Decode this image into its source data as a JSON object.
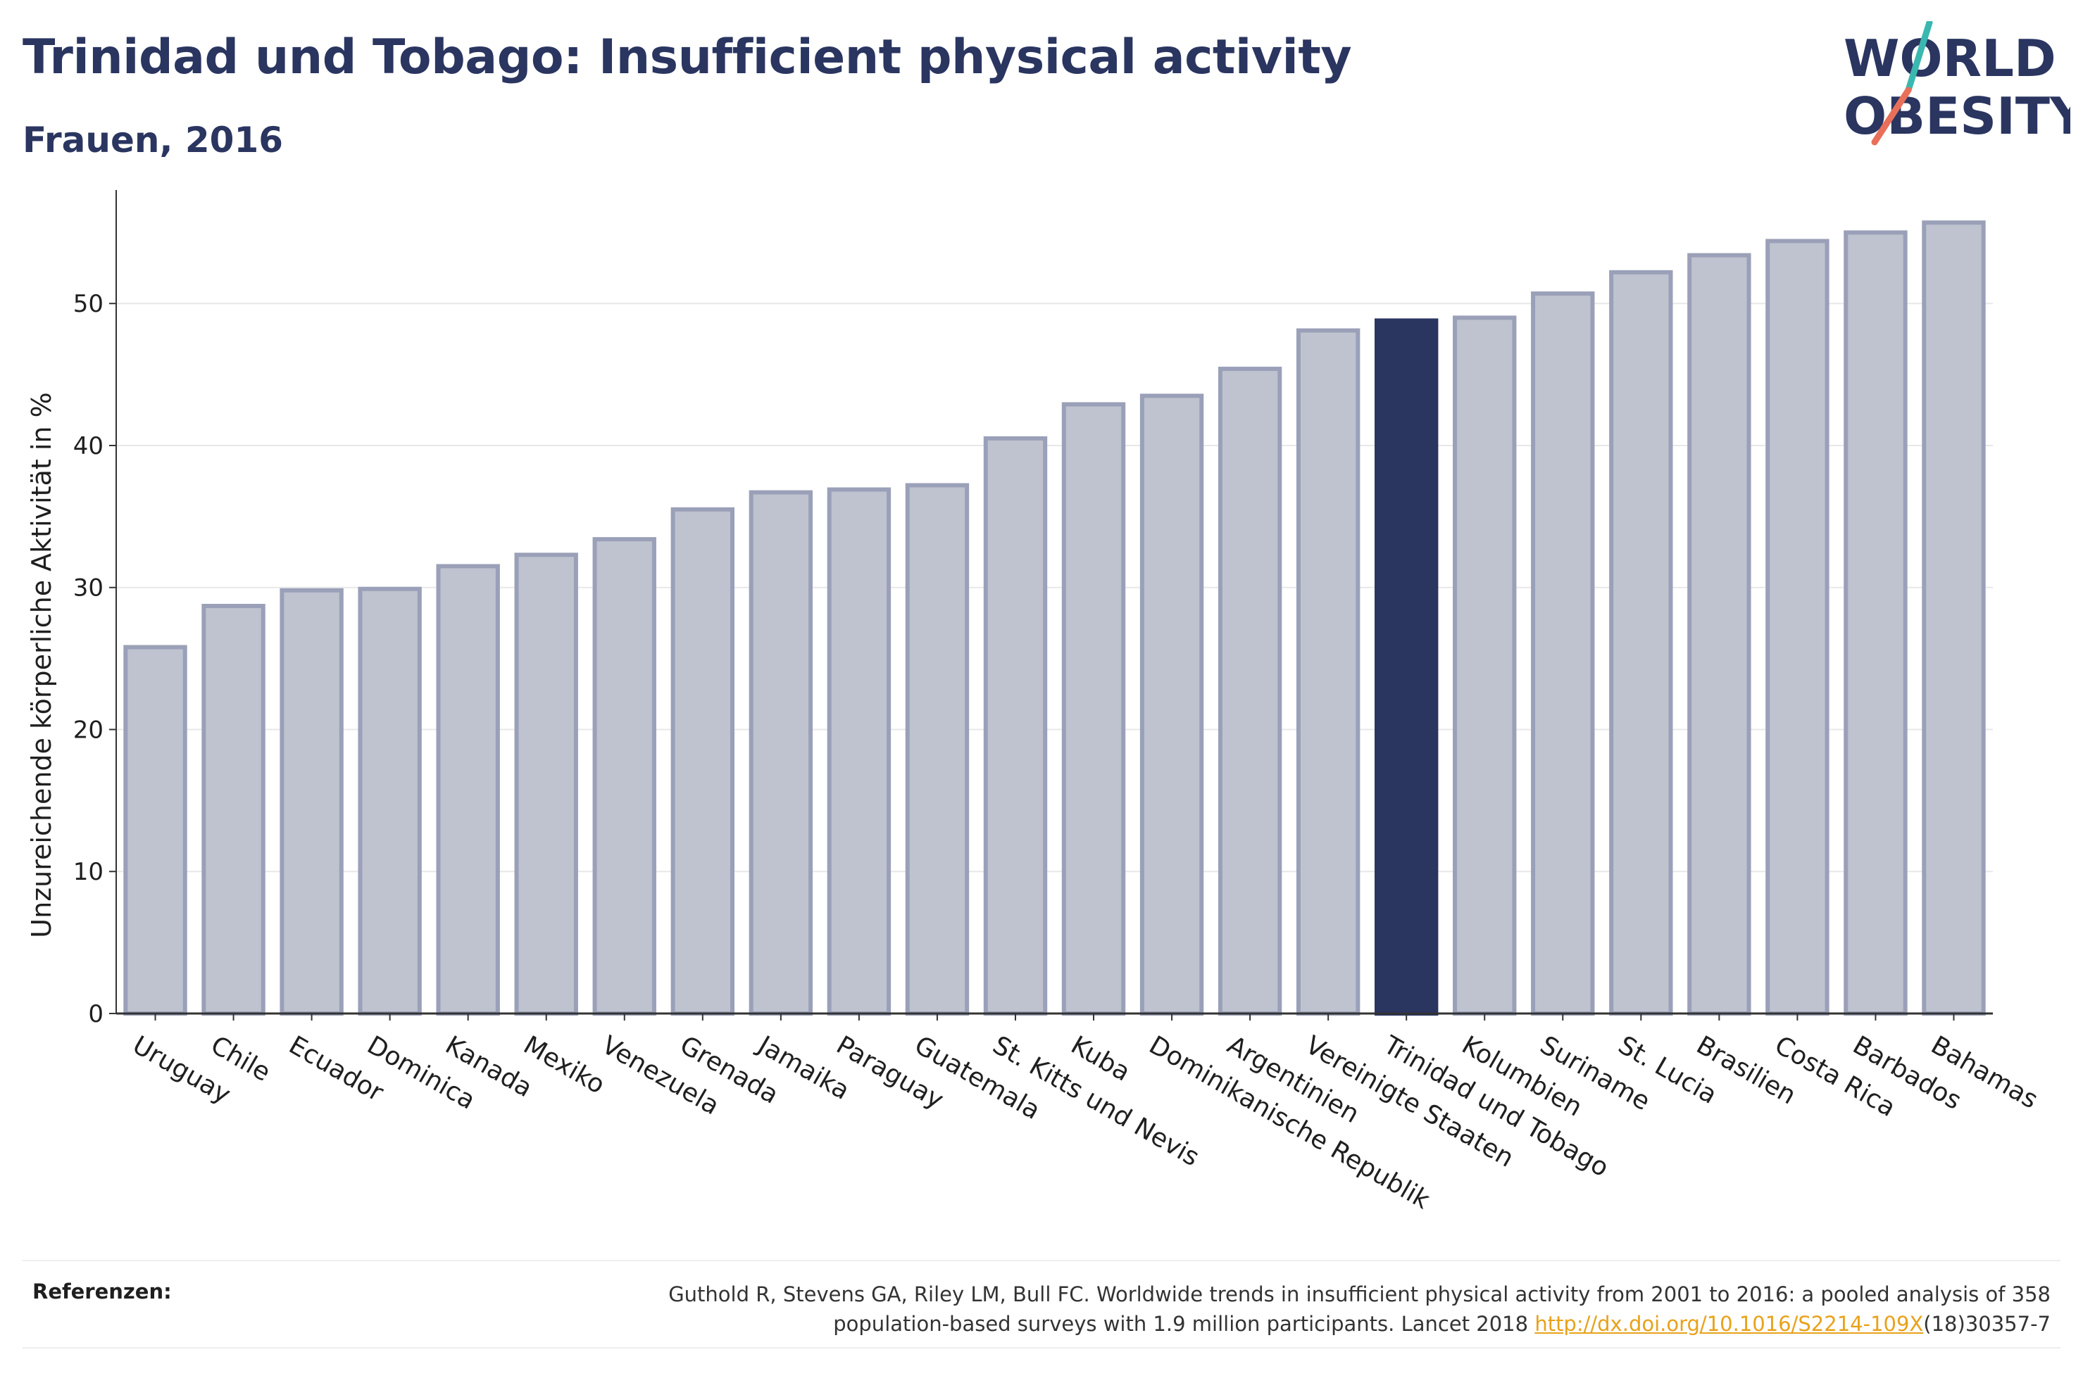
{
  "header": {
    "title": "Trinidad und Tobago: Insufficient physical activity",
    "subtitle": "Frauen, 2016"
  },
  "logo": {
    "line1": "WORLD",
    "line2": "OBESITY"
  },
  "colors": {
    "highlight": "#2a3560",
    "bar_fill": "#bfc3cf",
    "bar_stroke": "#9aa0b8",
    "grid": "#e8e8e8",
    "logo_teal": "#3ab8b0",
    "logo_coral": "#e8705a"
  },
  "chart_data": {
    "type": "bar",
    "title": "Trinidad und Tobago: Insufficient physical activity",
    "subtitle": "Frauen, 2016",
    "ylabel": "Unzureichende körperliche Aktivität in %",
    "xlabel": "",
    "ylim": [
      0,
      57
    ],
    "yticks": [
      0,
      10,
      20,
      30,
      40,
      50
    ],
    "grid": true,
    "highlight": "Trinidad und Tobago",
    "categories": [
      "Uruguay",
      "Chile",
      "Ecuador",
      "Dominica",
      "Kanada",
      "Mexiko",
      "Venezuela",
      "Grenada",
      "Jamaika",
      "Paraguay",
      "Guatemala",
      "St. Kitts und Nevis",
      "Kuba",
      "Dominikanische Republik",
      "Argentinien",
      "Vereinigte Staaten",
      "Trinidad und Tobago",
      "Kolumbien",
      "Suriname",
      "St. Lucia",
      "Brasilien",
      "Costa Rica",
      "Barbados",
      "Bahamas"
    ],
    "values": [
      25.8,
      28.7,
      29.8,
      29.9,
      31.5,
      32.3,
      33.4,
      35.5,
      36.7,
      36.9,
      37.2,
      40.5,
      42.9,
      43.5,
      45.4,
      48.1,
      48.8,
      49.0,
      50.7,
      52.2,
      53.4,
      54.4,
      55.0,
      55.7
    ]
  },
  "footer": {
    "label": "Referenzen:",
    "text_line1": "Guthold R, Stevens GA, Riley LM, Bull FC. Worldwide trends in insufficient physical activity from 2001 to 2016: a pooled analysis of 358",
    "text_line2_prefix": "population-based surveys with 1.9 million participants. Lancet 2018 ",
    "link": "http://dx.doi.org/10.1016/S2214-109X",
    "text_line2_suffix": "(18)30357-7"
  }
}
